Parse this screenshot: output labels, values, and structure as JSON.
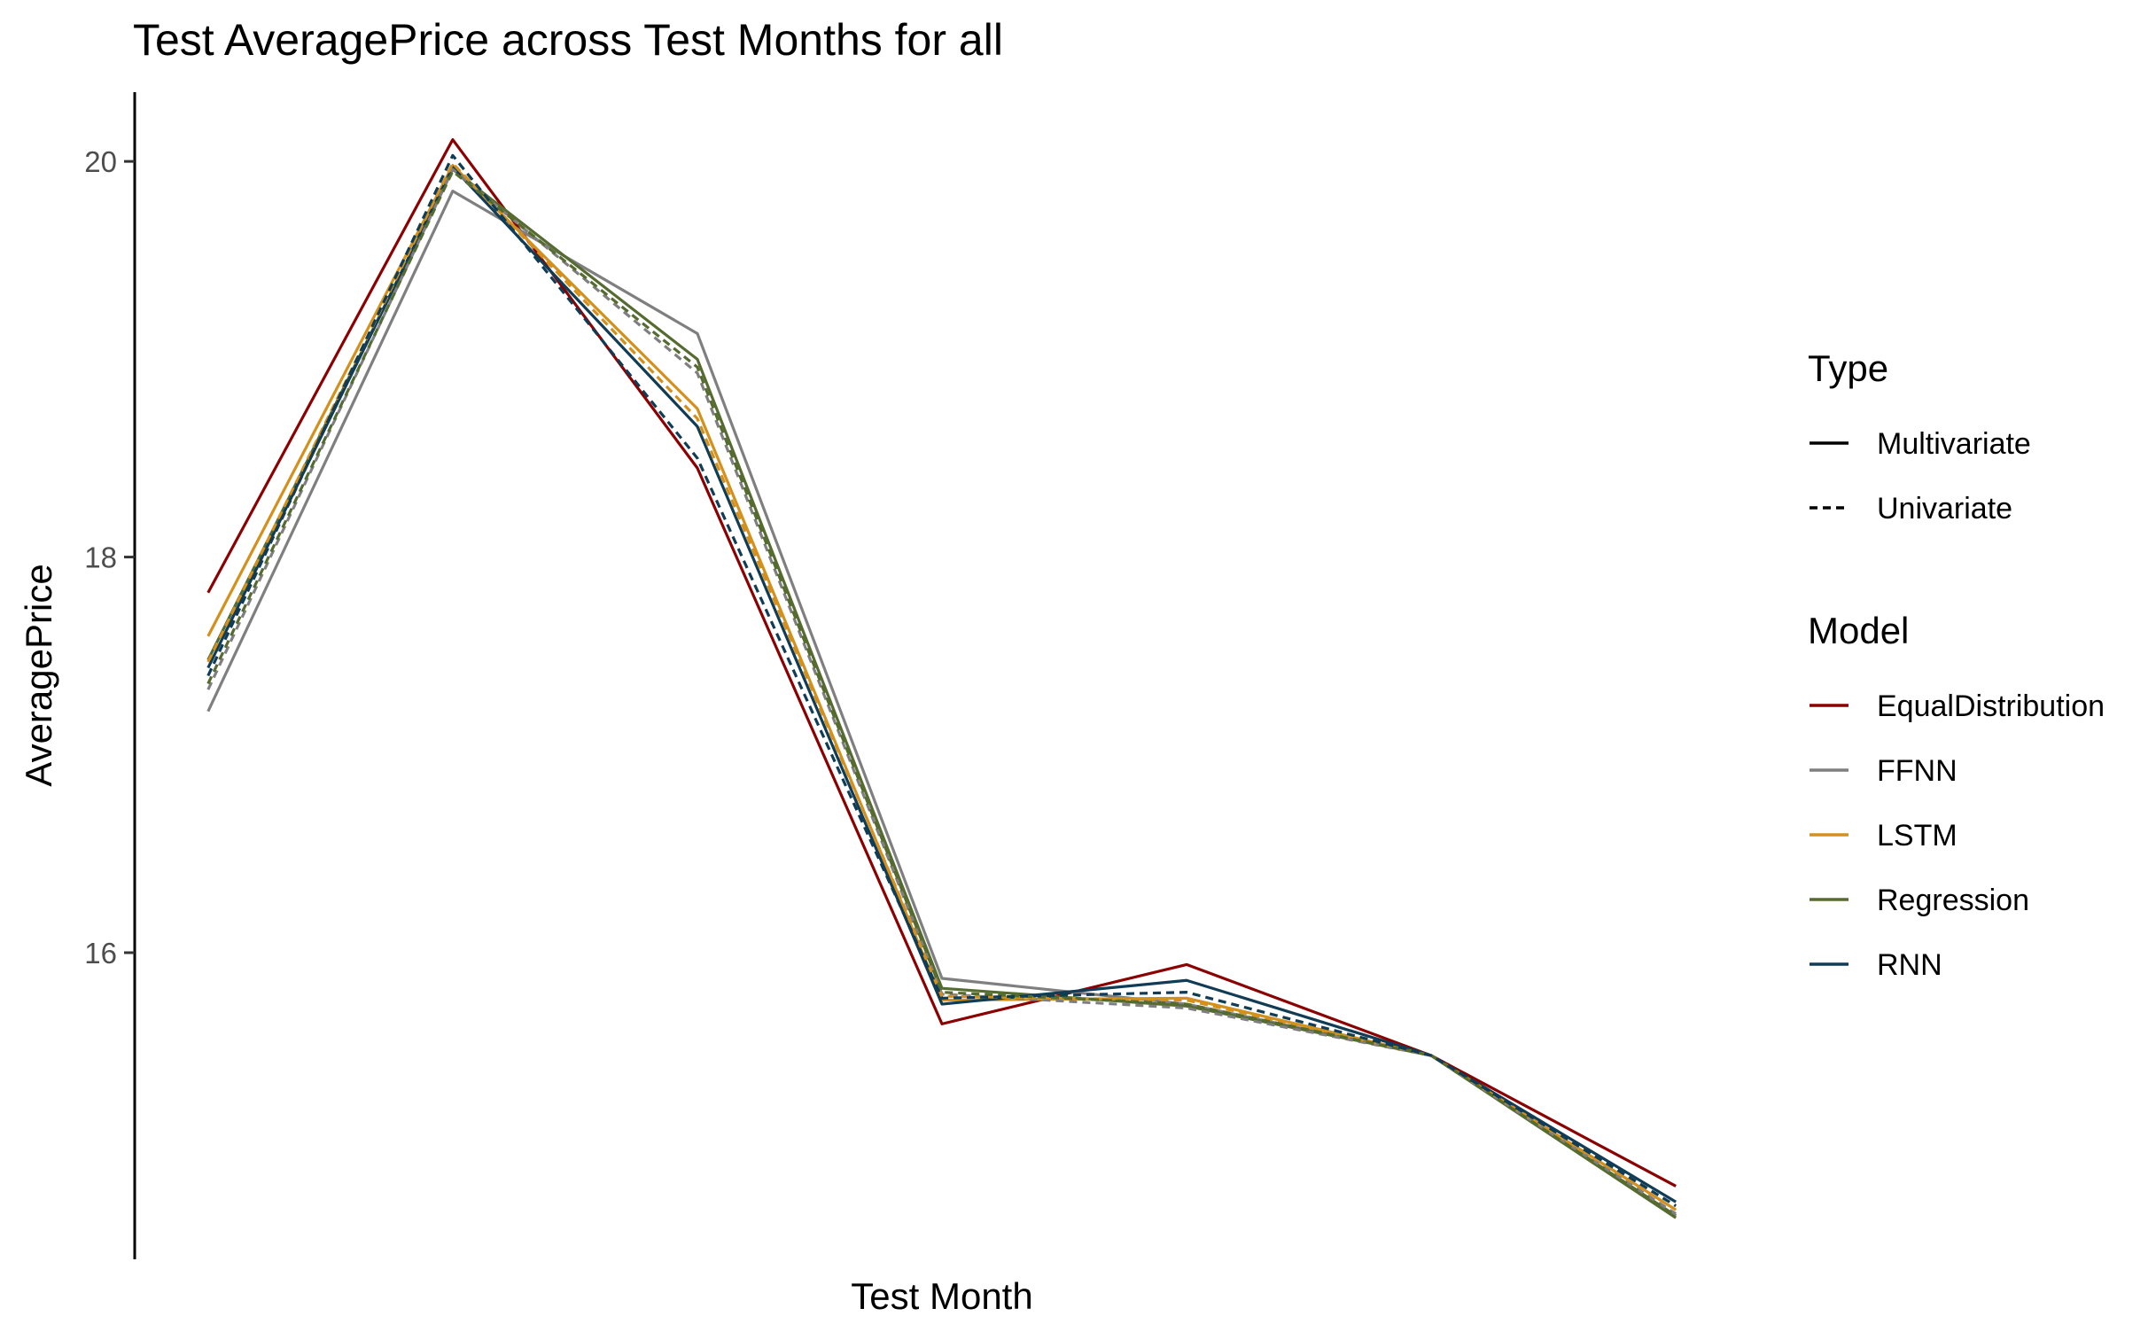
{
  "chart_data": {
    "type": "line",
    "title": "Test AveragePrice across Test Months for all",
    "xlabel": "Test Month",
    "ylabel": "AveragePrice",
    "x": [
      1,
      2,
      3,
      4,
      5,
      6,
      7
    ],
    "xlim": [
      0.7,
      7.3
    ],
    "ylim": [
      14.45,
      20.35
    ],
    "yticks": [
      16,
      18,
      20
    ],
    "grid": false,
    "legend_placement": "right",
    "legends": [
      {
        "title": "Type",
        "entries": [
          {
            "label": "Multivariate",
            "dash": "solid",
            "color": "#000000"
          },
          {
            "label": "Univariate",
            "dash": "dashed",
            "color": "#000000"
          }
        ]
      },
      {
        "title": "Model",
        "entries": [
          {
            "label": "EqualDistribution",
            "color": "#8b0000"
          },
          {
            "label": "FFNN",
            "color": "#7f7f7f"
          },
          {
            "label": "LSTM",
            "color": "#d4901c"
          },
          {
            "label": "Regression",
            "color": "#556b2f"
          },
          {
            "label": "RNN",
            "color": "#103c55"
          }
        ]
      }
    ],
    "series": [
      {
        "model": "EqualDistribution",
        "type": "Multivariate",
        "color": "#8b0000",
        "values": [
          17.82,
          20.11,
          18.45,
          15.64,
          15.94,
          15.48,
          14.82
        ]
      },
      {
        "model": "FFNN",
        "type": "Multivariate",
        "color": "#7f7f7f",
        "values": [
          17.22,
          19.85,
          19.13,
          15.87,
          15.74,
          15.48,
          14.67
        ]
      },
      {
        "model": "FFNN",
        "type": "Univariate",
        "color": "#7f7f7f",
        "values": [
          17.33,
          19.96,
          18.93,
          15.79,
          15.72,
          15.48,
          14.68
        ]
      },
      {
        "model": "LSTM",
        "type": "Multivariate",
        "color": "#d4901c",
        "values": [
          17.6,
          19.98,
          18.75,
          15.76,
          15.77,
          15.48,
          14.7
        ]
      },
      {
        "model": "LSTM",
        "type": "Univariate",
        "color": "#d4901c",
        "values": [
          17.47,
          19.99,
          18.7,
          15.78,
          15.76,
          15.48,
          14.7
        ]
      },
      {
        "model": "Regression",
        "type": "Multivariate",
        "color": "#556b2f",
        "values": [
          17.48,
          19.96,
          19.0,
          15.82,
          15.73,
          15.48,
          14.66
        ]
      },
      {
        "model": "Regression",
        "type": "Univariate",
        "color": "#556b2f",
        "values": [
          17.36,
          19.95,
          18.96,
          15.8,
          15.74,
          15.48,
          14.67
        ]
      },
      {
        "model": "RNN",
        "type": "Multivariate",
        "color": "#103c55",
        "values": [
          17.44,
          19.97,
          18.66,
          15.74,
          15.86,
          15.48,
          14.74
        ]
      },
      {
        "model": "RNN",
        "type": "Univariate",
        "color": "#103c55",
        "values": [
          17.4,
          20.03,
          18.5,
          15.77,
          15.8,
          15.48,
          14.72
        ]
      }
    ]
  }
}
